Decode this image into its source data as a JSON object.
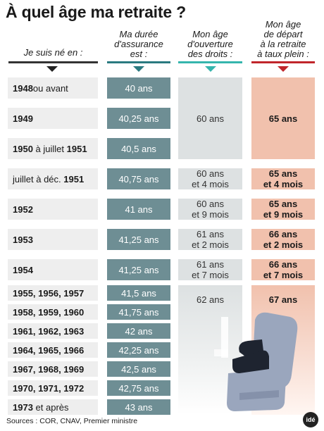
{
  "title": "À quel âge ma retraite ?",
  "headers": {
    "born": "Je suis né en :",
    "duration": [
      "Ma durée",
      "d'assurance",
      "est :"
    ],
    "opening": [
      "Mon âge",
      "d'ouverture",
      "des droits :"
    ],
    "fullrate": [
      "Mon âge",
      "de départ",
      "à la retraite",
      "à taux plein :"
    ]
  },
  "rows": [
    {
      "born_bold": "1948",
      "born_rest": " ou avant",
      "duration": "40 ans"
    },
    {
      "born_bold": "1949",
      "born_rest": "",
      "duration": "40,25 ans"
    },
    {
      "born_bold": "1950",
      "born_mid": " à juillet ",
      "born_bold2": "1951",
      "duration": "40,5 ans"
    },
    {
      "born_pre": "juillet à déc. ",
      "born_bold": "1951",
      "duration": "40,75 ans"
    },
    {
      "born_bold": "1952",
      "duration": "41 ans"
    },
    {
      "born_bold": "1953",
      "duration": "41,25 ans"
    },
    {
      "born_bold": "1954",
      "duration": "41,25 ans"
    },
    {
      "born_bold": "1955, 1956, 1957",
      "duration": "41,5 ans"
    },
    {
      "born_bold": "1958, 1959, 1960",
      "duration": "41,75 ans"
    },
    {
      "born_bold": "1961, 1962, 1963",
      "duration": "42 ans"
    },
    {
      "born_bold": "1964, 1965, 1966",
      "duration": "42,25 ans"
    },
    {
      "born_bold": "1967, 1968, 1969",
      "duration": "42,5 ans"
    },
    {
      "born_bold": "1970, 1971, 1972",
      "duration": "42,75 ans"
    },
    {
      "born_bold": "1973",
      "born_rest": " et après",
      "duration": "43 ans"
    }
  ],
  "opening_ages": [
    {
      "text": "60 ans"
    },
    {
      "text": "60 ans\net 4 mois"
    },
    {
      "text": "60 ans\net 9 mois"
    },
    {
      "text": "61 ans\net 2 mois"
    },
    {
      "text": "61 ans\net 7 mois"
    },
    {
      "text": "62 ans"
    }
  ],
  "full_ages": [
    {
      "text": "65 ans"
    },
    {
      "text": "65 ans\net 4 mois"
    },
    {
      "text": "65 ans\net 9 mois"
    },
    {
      "text": "66 ans\net 2 mois"
    },
    {
      "text": "66 ans\net 7 mois"
    },
    {
      "text": "67 ans"
    }
  ],
  "sources": "Sources : COR, CNAV, Premier ministre",
  "logo": "idé",
  "colors": {
    "duration_bg": "#6e8e94",
    "opening_bg": "#dde1e2",
    "fullrate_bg": "#f1c1ad",
    "duration_marker": "#2a7a80",
    "opening_marker": "#35b5ad",
    "fullrate_marker": "#c0262b",
    "chair": "#9aa6bd"
  },
  "icons": {
    "chair": "retiree-armchair-icon"
  }
}
